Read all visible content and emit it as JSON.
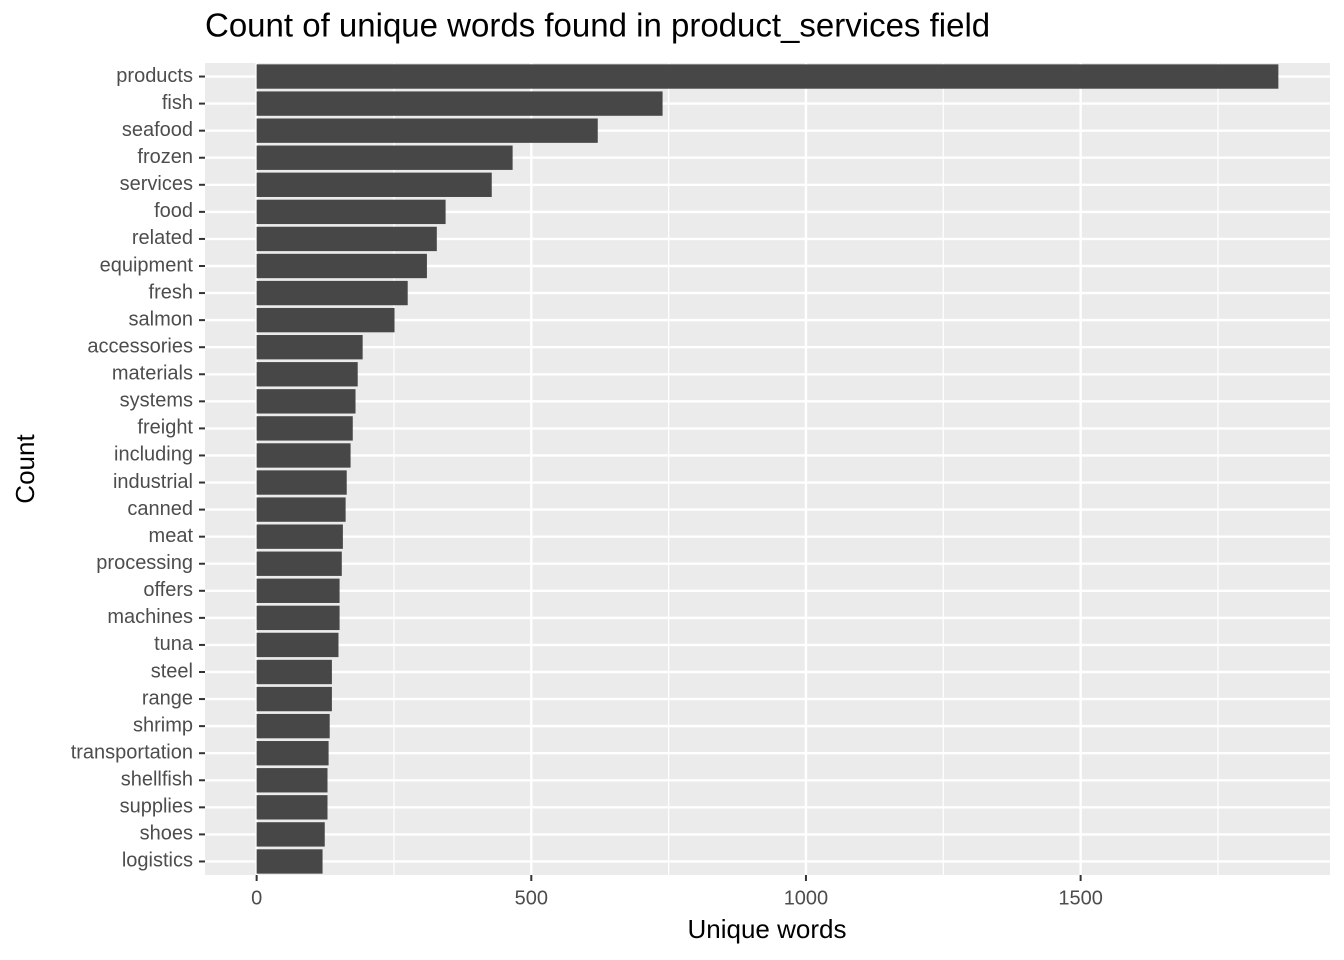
{
  "chart_data": {
    "type": "bar",
    "orientation": "horizontal",
    "title": "Count of unique words found in product_services field",
    "xlabel": "Unique words",
    "ylabel": "Count",
    "categories": [
      "products",
      "fish",
      "seafood",
      "frozen",
      "services",
      "food",
      "related",
      "equipment",
      "fresh",
      "salmon",
      "accessories",
      "materials",
      "systems",
      "freight",
      "including",
      "industrial",
      "canned",
      "meat",
      "processing",
      "offers",
      "machines",
      "tuna",
      "steel",
      "range",
      "shrimp",
      "transportation",
      "shellfish",
      "supplies",
      "shoes",
      "logistics"
    ],
    "values": [
      1860,
      739,
      621,
      466,
      428,
      344,
      328,
      310,
      275,
      251,
      193,
      184,
      180,
      175,
      171,
      164,
      162,
      157,
      155,
      151,
      151,
      149,
      137,
      137,
      133,
      131,
      129,
      129,
      124,
      120
    ],
    "color": "#474747",
    "xlim": [
      -94,
      1954
    ],
    "xticks": [
      0,
      500,
      1000,
      1500
    ],
    "minor_xticks": [
      250,
      750,
      1250,
      1750
    ],
    "grid": true
  }
}
